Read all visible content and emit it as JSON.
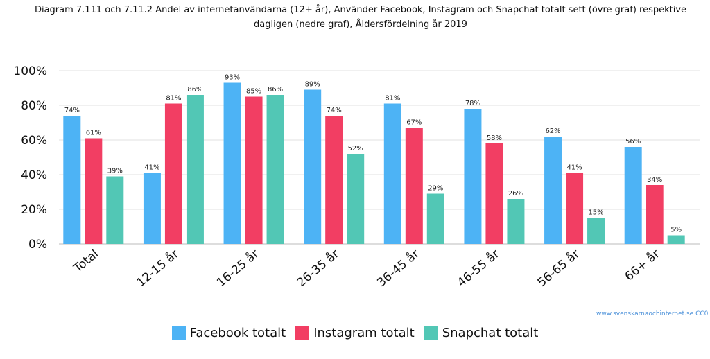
{
  "title": "Diagram 7.111 och 7.11.2 Andel av internetanvändarna (12+ år), Använder Facebook, Instagram och Snapchat totalt sett (övre graf) respektive dagligen (nedre graf), Åldersfördelning år 2019",
  "source": "www.svenskarnaochinternet.se CC0",
  "chart_data": {
    "type": "bar",
    "categories": [
      "Total",
      "12-15 år",
      "16-25 år",
      "26-35 år",
      "36-45 år",
      "46-55 år",
      "56-65 år",
      "66+ år"
    ],
    "series": [
      {
        "name": "Facebook totalt",
        "color": "#4db3f5",
        "values": [
          74,
          41,
          93,
          89,
          81,
          78,
          62,
          56
        ]
      },
      {
        "name": "Instagram totalt",
        "color": "#f23e63",
        "values": [
          61,
          81,
          85,
          74,
          67,
          58,
          41,
          34
        ]
      },
      {
        "name": "Snapchat totalt",
        "color": "#52c7b5",
        "values": [
          39,
          86,
          86,
          52,
          29,
          26,
          15,
          5
        ]
      }
    ],
    "y_ticks": [
      "0%",
      "20%",
      "40%",
      "60%",
      "80%",
      "100%"
    ],
    "ylim": [
      0,
      100
    ],
    "value_suffix": "%",
    "grid": true,
    "legend_position": "bottom"
  }
}
